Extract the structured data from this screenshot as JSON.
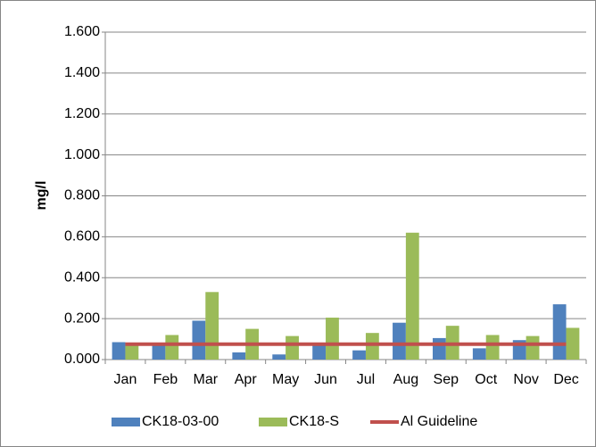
{
  "chart_data": {
    "type": "bar",
    "y_label": "mg/l",
    "categories": [
      "Jan",
      "Feb",
      "Mar",
      "Apr",
      "May",
      "Jun",
      "Jul",
      "Aug",
      "Sep",
      "Oct",
      "Nov",
      "Dec"
    ],
    "series": [
      {
        "name": "CK18-03-00",
        "color": "#4f81bd",
        "values": [
          0.085,
          0.07,
          0.19,
          0.035,
          0.025,
          0.07,
          0.045,
          0.18,
          0.105,
          0.055,
          0.095,
          0.27
        ]
      },
      {
        "name": "CK18-S",
        "color": "#9bbb59",
        "values": [
          0.07,
          0.12,
          0.33,
          0.15,
          0.115,
          0.205,
          0.13,
          0.62,
          0.165,
          0.12,
          0.115,
          0.155
        ]
      },
      {
        "name": "Al Guideline",
        "color": "#c0504d",
        "type": "line",
        "values": [
          0.075,
          0.075,
          0.075,
          0.075,
          0.075,
          0.075,
          0.075,
          0.075,
          0.075,
          0.075,
          0.075,
          0.075
        ]
      }
    ],
    "ylim": [
      0,
      1.6
    ],
    "yticks": [
      {
        "value": 0,
        "label": "0.000"
      },
      {
        "value": 0.2,
        "label": "0.200"
      },
      {
        "value": 0.4,
        "label": "0.400"
      },
      {
        "value": 0.6,
        "label": "0.600"
      },
      {
        "value": 0.8,
        "label": "0.800"
      },
      {
        "value": 1.0,
        "label": "1.000"
      },
      {
        "value": 1.2,
        "label": "1.200"
      },
      {
        "value": 1.4,
        "label": "1.400"
      },
      {
        "value": 1.6,
        "label": "1.600"
      }
    ],
    "grid": true
  }
}
